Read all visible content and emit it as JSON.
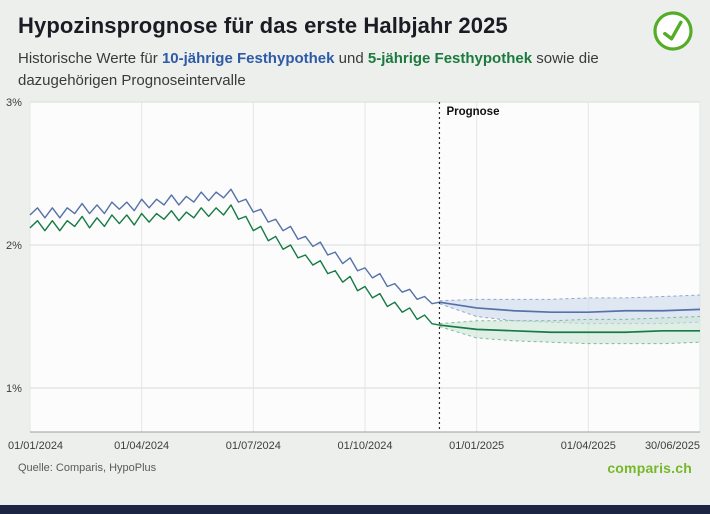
{
  "header": {
    "title": "Hypozinsprognose für das erste Halbjahr 2025",
    "subtitle": {
      "part1": "Historische Werte für ",
      "bold_blue": "10-jährige Festhypothek",
      "part2": " und ",
      "bold_green": "5-jährige Festhypothek",
      "part3": " sowie die dazugehörigen Prognoseintervalle"
    }
  },
  "colors": {
    "accent_blue": "#2e5ba6",
    "accent_green": "#1d7a3f",
    "line_blue": "#5572a8",
    "line_green": "#177a45",
    "band_blue": "#cdd9ec",
    "band_green": "#cfe6d8",
    "logo_green": "#76b82a",
    "footer_bar": "#1d2545",
    "check_green": "#53ad26"
  },
  "footer": {
    "source": "Quelle: Comparis, HypoPlus",
    "logo": "comparis.ch"
  },
  "chart_data": {
    "type": "line",
    "title": "Hypozinsprognose für das erste Halbjahr 2025",
    "grid": true,
    "legend_position": "none",
    "forecast_label": "Prognose",
    "forecast_start_t": 11,
    "x_axis": {
      "unit": "months from 01/01/2024",
      "range": [
        0,
        18
      ],
      "ticks": [
        {
          "t": 0,
          "label": "01/01/2024"
        },
        {
          "t": 3,
          "label": "01/04/2024"
        },
        {
          "t": 6,
          "label": "01/07/2024"
        },
        {
          "t": 9,
          "label": "01/10/2024"
        },
        {
          "t": 12,
          "label": "01/01/2025"
        },
        {
          "t": 15,
          "label": "01/04/2025"
        },
        {
          "t": 18,
          "label": "30/06/2025"
        }
      ]
    },
    "y_axis": {
      "unit": "%",
      "range": [
        0.7,
        3.05
      ],
      "ticks": [
        {
          "v": 1,
          "label": "1%"
        },
        {
          "v": 2,
          "label": "2%"
        },
        {
          "v": 3,
          "label": "3%"
        }
      ]
    },
    "series": [
      {
        "name": "10-jährige Festhypothek",
        "color": "#5572a8",
        "historical": {
          "t_start": 0,
          "t_end": 11,
          "values": [
            2.21,
            2.26,
            2.19,
            2.26,
            2.19,
            2.26,
            2.22,
            2.29,
            2.22,
            2.28,
            2.22,
            2.3,
            2.25,
            2.3,
            2.24,
            2.32,
            2.26,
            2.32,
            2.28,
            2.35,
            2.28,
            2.34,
            2.3,
            2.37,
            2.31,
            2.37,
            2.33,
            2.39,
            2.3,
            2.32,
            2.23,
            2.25,
            2.16,
            2.18,
            2.1,
            2.13,
            2.04,
            2.06,
            1.99,
            2.02,
            1.93,
            1.95,
            1.87,
            1.91,
            1.82,
            1.84,
            1.77,
            1.8,
            1.71,
            1.73,
            1.67,
            1.69,
            1.62,
            1.64,
            1.59,
            1.6
          ]
        },
        "forecast": {
          "t": [
            11,
            12,
            13,
            14,
            15,
            16,
            17,
            18
          ],
          "values": [
            1.6,
            1.56,
            1.54,
            1.53,
            1.53,
            1.54,
            1.54,
            1.55
          ],
          "upper": [
            1.61,
            1.62,
            1.62,
            1.62,
            1.63,
            1.63,
            1.64,
            1.65
          ],
          "lower": [
            1.59,
            1.5,
            1.47,
            1.46,
            1.45,
            1.45,
            1.45,
            1.46
          ],
          "band_color": "#cdd9ec",
          "edge_color": "#8fa7cc"
        }
      },
      {
        "name": "5-jährige Festhypothek",
        "color": "#177a45",
        "historical": {
          "t_start": 0,
          "t_end": 11,
          "values": [
            2.12,
            2.17,
            2.1,
            2.17,
            2.1,
            2.17,
            2.13,
            2.2,
            2.12,
            2.19,
            2.13,
            2.21,
            2.15,
            2.21,
            2.14,
            2.22,
            2.16,
            2.22,
            2.18,
            2.24,
            2.17,
            2.23,
            2.19,
            2.26,
            2.2,
            2.26,
            2.21,
            2.28,
            2.18,
            2.2,
            2.1,
            2.13,
            2.03,
            2.06,
            1.97,
            2.0,
            1.91,
            1.93,
            1.86,
            1.89,
            1.8,
            1.82,
            1.74,
            1.78,
            1.68,
            1.71,
            1.63,
            1.66,
            1.57,
            1.6,
            1.53,
            1.56,
            1.48,
            1.51,
            1.45,
            1.44
          ]
        },
        "forecast": {
          "t": [
            11,
            12,
            13,
            14,
            15,
            16,
            17,
            18
          ],
          "values": [
            1.44,
            1.41,
            1.4,
            1.39,
            1.39,
            1.39,
            1.4,
            1.4
          ],
          "upper": [
            1.45,
            1.47,
            1.47,
            1.47,
            1.48,
            1.48,
            1.49,
            1.5
          ],
          "lower": [
            1.43,
            1.35,
            1.33,
            1.32,
            1.31,
            1.31,
            1.31,
            1.32
          ],
          "band_color": "#cfe6d8",
          "edge_color": "#7fb89a"
        }
      }
    ]
  }
}
